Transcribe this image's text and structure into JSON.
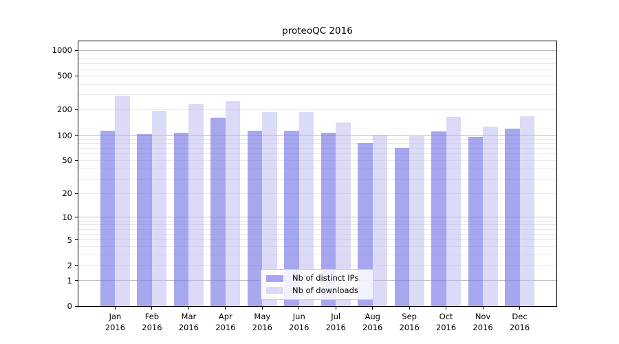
{
  "title": "proteoQC 2016",
  "colors": {
    "ips_bar": "#7878e8",
    "ips_bar_alpha": 0.65,
    "downloads_bar": "#b8b8f0",
    "downloads_bar_alpha": 0.5,
    "grid_major": "#bcbcbc",
    "grid_minor": "#e9e9e9",
    "axis": "#000000",
    "legend_border": "#cccccc"
  },
  "legend": {
    "items": [
      {
        "label": "Nb of distinct IPs",
        "swatch": "ips"
      },
      {
        "label": "Nb of downloads",
        "swatch": "downloads"
      }
    ]
  },
  "chart_data": {
    "type": "bar",
    "title": "proteoQC 2016",
    "yscale": "log1p",
    "categories": [
      "Jan",
      "Feb",
      "Mar",
      "Apr",
      "May",
      "Jun",
      "Jul",
      "Aug",
      "Sep",
      "Oct",
      "Nov",
      "Dec"
    ],
    "x_year": "2016",
    "series": [
      {
        "name": "Nb of distinct IPs",
        "values": [
          114,
          103,
          107,
          162,
          114,
          114,
          106,
          80,
          71,
          110,
          96,
          120
        ]
      },
      {
        "name": "Nb of downloads",
        "values": [
          294,
          196,
          235,
          252,
          186,
          186,
          141,
          100,
          97,
          163,
          127,
          167
        ]
      }
    ],
    "yticks": [
      0,
      1,
      2,
      5,
      10,
      20,
      50,
      100,
      200,
      500,
      1000
    ],
    "ylim": [
      0,
      1300
    ],
    "grid": true,
    "legend_position": "lower center",
    "xlabel": "",
    "ylabel": ""
  }
}
